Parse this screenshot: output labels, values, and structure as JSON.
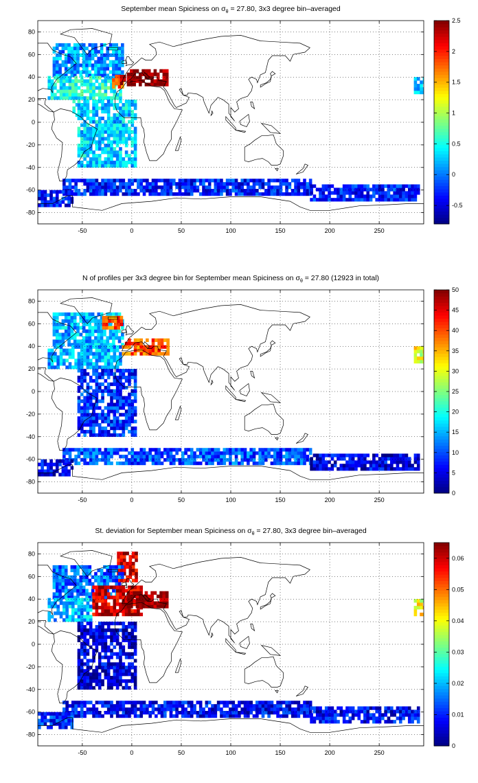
{
  "chart_data": [
    {
      "type": "heatmap",
      "title_prefix": "September mean Spiciness on ",
      "title_symbol": "σ",
      "title_subscript": "θ",
      "title_suffix": " = 27.80, 3x3 degree bin–averaged",
      "xlim": [
        -95,
        295
      ],
      "ylim": [
        -90,
        90
      ],
      "x_ticks": [
        -50,
        0,
        50,
        100,
        150,
        200,
        250
      ],
      "y_ticks": [
        -80,
        -60,
        -40,
        -20,
        0,
        20,
        40,
        60,
        80
      ],
      "grid": true,
      "colorbar": {
        "min": -0.8,
        "max": 2.5,
        "ticks": [
          -0.5,
          0,
          0.5,
          1,
          1.5,
          2,
          2.5
        ],
        "tick_labels": [
          "-0.5",
          "0",
          "0.5",
          "1",
          "1.5",
          "2",
          "2.5"
        ]
      },
      "regions": [
        {
          "x": [
            -80,
            -10
          ],
          "y": [
            40,
            70
          ],
          "value": 0.1
        },
        {
          "x": [
            -85,
            -10
          ],
          "y": [
            20,
            40
          ],
          "value": 0.5
        },
        {
          "x": [
            -20,
            -8
          ],
          "y": [
            30,
            42
          ],
          "value": 1.8
        },
        {
          "x": [
            -12,
            -6
          ],
          "y": [
            33,
            40
          ],
          "value": 2.3
        },
        {
          "x": [
            -5,
            36
          ],
          "y": [
            32,
            45
          ],
          "value": 2.5
        },
        {
          "x": [
            -60,
            -45
          ],
          "y": [
            5,
            20
          ],
          "value": 0.3
        },
        {
          "x": [
            -55,
            5
          ],
          "y": [
            -40,
            20
          ],
          "value": 0.3
        },
        {
          "x": [
            -70,
            180
          ],
          "y": [
            -65,
            -50
          ],
          "value": -0.3
        },
        {
          "x": [
            180,
            290
          ],
          "y": [
            -70,
            -55
          ],
          "value": -0.3
        },
        {
          "x": [
            -95,
            -60
          ],
          "y": [
            -75,
            -62
          ],
          "value": -0.3
        },
        {
          "x": [
            285,
            295
          ],
          "y": [
            25,
            40
          ],
          "value": 0.3
        }
      ]
    },
    {
      "type": "heatmap",
      "title_prefix": "N of profiles per 3x3 degree bin for September mean Spiciness on ",
      "title_symbol": "σ",
      "title_subscript": "θ",
      "title_suffix": " = 27.80 (12923 in total)",
      "xlim": [
        -95,
        295
      ],
      "ylim": [
        -90,
        90
      ],
      "x_ticks": [
        -50,
        0,
        50,
        100,
        150,
        200,
        250
      ],
      "y_ticks": [
        -80,
        -60,
        -40,
        -20,
        0,
        20,
        40,
        60,
        80
      ],
      "grid": true,
      "colorbar": {
        "min": 0,
        "max": 50,
        "ticks": [
          0,
          5,
          10,
          15,
          20,
          25,
          30,
          35,
          40,
          45,
          50
        ],
        "tick_labels": [
          "0",
          "5",
          "10",
          "15",
          "20",
          "25",
          "30",
          "35",
          "40",
          "45",
          "50"
        ]
      },
      "regions": [
        {
          "x": [
            -80,
            -10
          ],
          "y": [
            40,
            70
          ],
          "value": 15
        },
        {
          "x": [
            -30,
            -10
          ],
          "y": [
            55,
            65
          ],
          "value": 40
        },
        {
          "x": [
            -85,
            -10
          ],
          "y": [
            20,
            40
          ],
          "value": 15
        },
        {
          "x": [
            -10,
            36
          ],
          "y": [
            32,
            45
          ],
          "value": 40
        },
        {
          "x": [
            -55,
            5
          ],
          "y": [
            -40,
            20
          ],
          "value": 8
        },
        {
          "x": [
            -70,
            180
          ],
          "y": [
            -65,
            -50
          ],
          "value": 10
        },
        {
          "x": [
            180,
            290
          ],
          "y": [
            -70,
            -55
          ],
          "value": 5
        },
        {
          "x": [
            -95,
            -60
          ],
          "y": [
            -75,
            -62
          ],
          "value": 5
        },
        {
          "x": [
            285,
            295
          ],
          "y": [
            25,
            40
          ],
          "value": 30
        }
      ]
    },
    {
      "type": "heatmap",
      "title_prefix": "St. deviation for September mean Spiciness on ",
      "title_symbol": "σ",
      "title_subscript": "θ",
      "title_suffix": " = 27.80, 3x3 degree bin–averaged",
      "xlim": [
        -95,
        295
      ],
      "ylim": [
        -90,
        90
      ],
      "x_ticks": [
        -50,
        0,
        50,
        100,
        150,
        200,
        250
      ],
      "y_ticks": [
        -80,
        -60,
        -40,
        -20,
        0,
        20,
        40,
        60,
        80
      ],
      "grid": true,
      "colorbar": {
        "min": 0,
        "max": 0.065,
        "ticks": [
          0,
          0.01,
          0.02,
          0.03,
          0.04,
          0.05,
          0.06
        ],
        "tick_labels": [
          "0",
          "0.01",
          "0.02",
          "0.03",
          "0.04",
          "0.05",
          "0.06"
        ]
      },
      "regions": [
        {
          "x": [
            -15,
            5
          ],
          "y": [
            55,
            80
          ],
          "value": 0.06
        },
        {
          "x": [
            -80,
            -10
          ],
          "y": [
            40,
            70
          ],
          "value": 0.015
        },
        {
          "x": [
            -40,
            10
          ],
          "y": [
            25,
            50
          ],
          "value": 0.06
        },
        {
          "x": [
            -5,
            36
          ],
          "y": [
            32,
            45
          ],
          "value": 0.065
        },
        {
          "x": [
            -85,
            -40
          ],
          "y": [
            20,
            40
          ],
          "value": 0.02
        },
        {
          "x": [
            -55,
            5
          ],
          "y": [
            -40,
            20
          ],
          "value": 0.006
        },
        {
          "x": [
            -70,
            180
          ],
          "y": [
            -65,
            -50
          ],
          "value": 0.008
        },
        {
          "x": [
            180,
            290
          ],
          "y": [
            -70,
            -55
          ],
          "value": 0.008
        },
        {
          "x": [
            -95,
            -60
          ],
          "y": [
            -75,
            -62
          ],
          "value": 0.01
        },
        {
          "x": [
            285,
            295
          ],
          "y": [
            25,
            40
          ],
          "value": 0.04
        }
      ]
    }
  ]
}
